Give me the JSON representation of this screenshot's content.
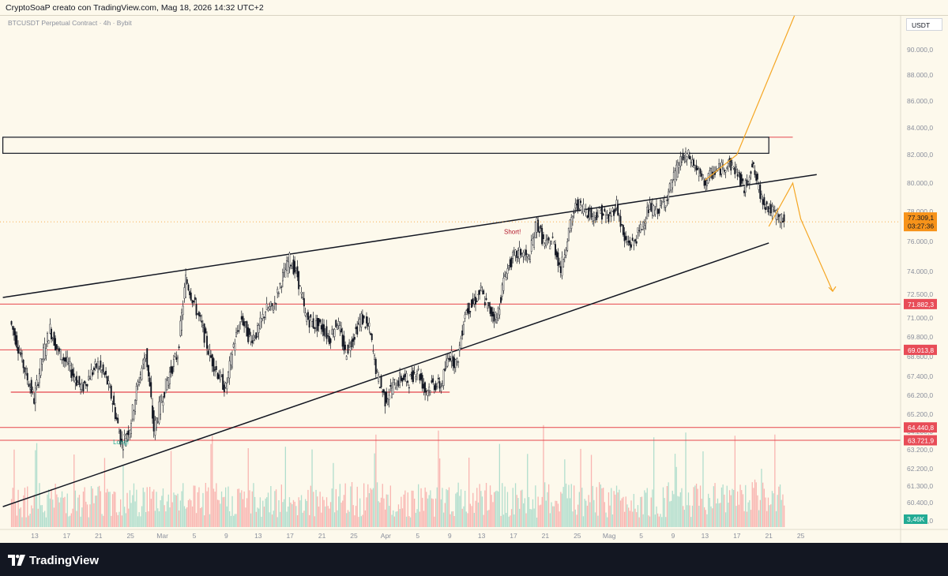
{
  "header": {
    "attribution": "CryptoSoaP creato con TradingView.com, Mag 18, 2026 14:32 UTC+2"
  },
  "symbol": {
    "title": "BTCUSDT Perpetual Contract · 4h · Bybit",
    "currency": "USDT"
  },
  "footer": {
    "logo_text": "TradingView"
  },
  "colors": {
    "background": "#fdf9ec",
    "candle_up": "#f5f2ea",
    "candle_down": "#131722",
    "volume_up": "#22ab94",
    "volume_down": "#f23645",
    "level_line": "#e6464d",
    "trend_line": "#131722",
    "projection": "#f5a623",
    "current_price": "#f7931a",
    "volume_label": "#22ab94"
  },
  "chart_data": {
    "type": "candlestick",
    "title": "BTCUSDT Perpetual Contract · 4h · Bybit",
    "timeframe": "4h",
    "y_axis": {
      "ticks": [
        "90.000,0",
        "88.000,0",
        "86.000,0",
        "84.000,0",
        "82.000,0",
        "80.000,0",
        "78.000,0",
        "76.000,0",
        "74.000,0",
        "72.500,0",
        "71.000,0",
        "69.800,0",
        "68.600,0",
        "67.400,0",
        "66.200,0",
        "65.200,0",
        "64.200,0",
        "63.200,0",
        "62.200,0",
        "61.300,0",
        "60.400,0",
        "59.500,0"
      ],
      "tick_values": [
        90000,
        88000,
        86000,
        84000,
        82000,
        80000,
        78000,
        76000,
        74000,
        72500,
        71000,
        69800,
        68600,
        67400,
        66200,
        65200,
        64200,
        63200,
        62200,
        61300,
        60400,
        59500
      ]
    },
    "x_axis": {
      "ticks": [
        "13",
        "17",
        "21",
        "25",
        "Mar",
        "5",
        "9",
        "13",
        "17",
        "21",
        "25",
        "Apr",
        "5",
        "9",
        "13",
        "17",
        "21",
        "25",
        "Mag",
        "5",
        "9",
        "13",
        "17",
        "21",
        "25"
      ]
    },
    "price_path": [
      [
        "2026-02-10",
        70800
      ],
      [
        "2026-02-11",
        69200
      ],
      [
        "2026-02-12",
        67500
      ],
      [
        "2026-02-13",
        66000
      ],
      [
        "2026-02-14",
        68500
      ],
      [
        "2026-02-15",
        70300
      ],
      [
        "2026-02-16",
        68900
      ],
      [
        "2026-02-17",
        68300
      ],
      [
        "2026-02-18",
        67400
      ],
      [
        "2026-02-19",
        66600
      ],
      [
        "2026-02-20",
        67500
      ],
      [
        "2026-02-21",
        68100
      ],
      [
        "2026-02-22",
        67300
      ],
      [
        "2026-02-23",
        65600
      ],
      [
        "2026-02-24",
        63500
      ],
      [
        "2026-02-25",
        64500
      ],
      [
        "2026-02-26",
        66900
      ],
      [
        "2026-02-27",
        68900
      ],
      [
        "2026-02-28",
        64300
      ],
      [
        "2026-03-01",
        66000
      ],
      [
        "2026-03-02",
        67600
      ],
      [
        "2026-03-03",
        68800
      ],
      [
        "2026-03-04",
        73500
      ],
      [
        "2026-03-05",
        72000
      ],
      [
        "2026-03-06",
        70500
      ],
      [
        "2026-03-07",
        68700
      ],
      [
        "2026-03-08",
        67600
      ],
      [
        "2026-03-09",
        66600
      ],
      [
        "2026-03-10",
        69300
      ],
      [
        "2026-03-11",
        71000
      ],
      [
        "2026-03-12",
        69700
      ],
      [
        "2026-03-13",
        70100
      ],
      [
        "2026-03-14",
        71500
      ],
      [
        "2026-03-15",
        71700
      ],
      [
        "2026-03-16",
        73400
      ],
      [
        "2026-03-17",
        74800
      ],
      [
        "2026-03-18",
        73700
      ],
      [
        "2026-03-19",
        71100
      ],
      [
        "2026-03-20",
        70600
      ],
      [
        "2026-03-21",
        70500
      ],
      [
        "2026-03-22",
        69700
      ],
      [
        "2026-03-23",
        70800
      ],
      [
        "2026-03-24",
        68800
      ],
      [
        "2026-03-25",
        69800
      ],
      [
        "2026-03-26",
        71000
      ],
      [
        "2026-03-27",
        70300
      ],
      [
        "2026-03-28",
        67400
      ],
      [
        "2026-03-29",
        66000
      ],
      [
        "2026-03-30",
        66800
      ],
      [
        "2026-03-31",
        67300
      ],
      [
        "2026-04-01",
        67100
      ],
      [
        "2026-04-02",
        67900
      ],
      [
        "2026-04-03",
        66500
      ],
      [
        "2026-04-04",
        66900
      ],
      [
        "2026-04-05",
        66800
      ],
      [
        "2026-04-06",
        68800
      ],
      [
        "2026-04-07",
        68100
      ],
      [
        "2026-04-08",
        71400
      ],
      [
        "2026-04-09",
        71900
      ],
      [
        "2026-04-10",
        72700
      ],
      [
        "2026-04-11",
        71500
      ],
      [
        "2026-04-12",
        71000
      ],
      [
        "2026-04-13",
        73800
      ],
      [
        "2026-04-14",
        74900
      ],
      [
        "2026-04-15",
        75300
      ],
      [
        "2026-04-16",
        74800
      ],
      [
        "2026-04-17",
        77300
      ],
      [
        "2026-04-18",
        75700
      ],
      [
        "2026-04-19",
        76100
      ],
      [
        "2026-04-20",
        74100
      ],
      [
        "2026-04-21",
        76700
      ],
      [
        "2026-04-22",
        78600
      ],
      [
        "2026-04-23",
        78200
      ],
      [
        "2026-04-24",
        77700
      ],
      [
        "2026-04-25",
        78000
      ],
      [
        "2026-04-26",
        77500
      ],
      [
        "2026-04-27",
        78500
      ],
      [
        "2026-04-28",
        76000
      ],
      [
        "2026-04-29",
        75800
      ],
      [
        "2026-04-30",
        76800
      ],
      [
        "2026-05-01",
        78200
      ],
      [
        "2026-05-02",
        78100
      ],
      [
        "2026-05-03",
        78600
      ],
      [
        "2026-05-04",
        80100
      ],
      [
        "2026-05-05",
        81600
      ],
      [
        "2026-05-06",
        81900
      ],
      [
        "2026-05-07",
        81000
      ],
      [
        "2026-05-08",
        80000
      ],
      [
        "2026-05-09",
        80700
      ],
      [
        "2026-05-10",
        81000
      ],
      [
        "2026-05-11",
        81400
      ],
      [
        "2026-05-12",
        80900
      ],
      [
        "2026-05-13",
        79500
      ],
      [
        "2026-05-14",
        81300
      ],
      [
        "2026-05-15",
        79200
      ],
      [
        "2026-05-16",
        78200
      ],
      [
        "2026-05-17",
        77800
      ],
      [
        "2026-05-18",
        77309
      ]
    ],
    "current_price": {
      "value": 77309.1,
      "label": "77.309,1",
      "countdown": "03:27:36"
    },
    "price_labels": [
      {
        "label": "71.882,3",
        "value": 71882.3
      },
      {
        "label": "69.013,8",
        "value": 69013.8
      },
      {
        "label": "64.440,8",
        "value": 64440.8
      },
      {
        "label": "63.721,9",
        "value": 63721.9
      }
    ],
    "horizontal_levels": [
      71882.3,
      69013.8,
      64440.8,
      63721.9
    ],
    "support_segment": {
      "value": 66400,
      "from": "2026-02-10",
      "to": "2026-04-06"
    },
    "resistance_box": {
      "top": 83300,
      "bottom": 82100,
      "from": "2026-02-09",
      "to": "2026-05-16"
    },
    "box_extension_value": 83300,
    "trendlines": [
      {
        "name": "upper",
        "points": [
          [
            "2026-02-09",
            72300
          ],
          [
            "2026-05-22",
            80600
          ]
        ]
      },
      {
        "name": "lower",
        "points": [
          [
            "2026-02-09",
            60200
          ],
          [
            "2026-05-16",
            75900
          ]
        ]
      }
    ],
    "projection_up": {
      "points": [
        [
          "2026-05-08",
          80200
        ],
        [
          "2026-05-12",
          82000
        ],
        [
          "2026-05-20",
          93900
        ]
      ]
    },
    "projection_down": {
      "points": [
        [
          "2026-05-16",
          77000
        ],
        [
          "2026-05-19",
          80000
        ],
        [
          "2026-05-20",
          77500
        ],
        [
          "2026-05-24",
          72700
        ]
      ]
    },
    "annotations": [
      {
        "text": "Short!",
        "date": "2026-04-14",
        "value": 76500,
        "color": "#b2182b"
      },
      {
        "text": "Long!",
        "date": "2026-02-24",
        "value": 63500,
        "color": "#22ab94"
      }
    ],
    "volume_label": "3,46K"
  }
}
